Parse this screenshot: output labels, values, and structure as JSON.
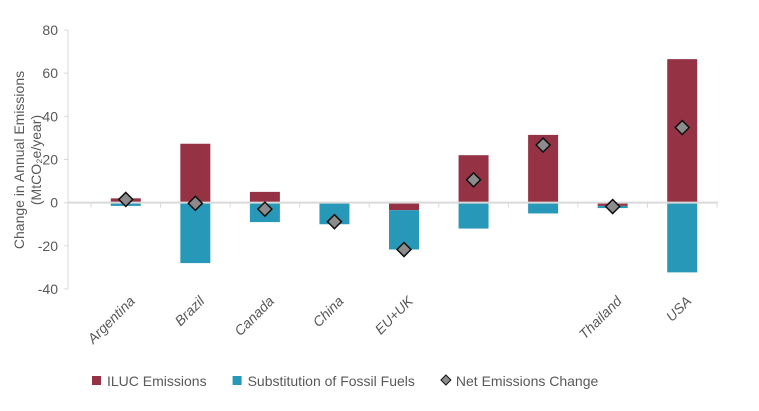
{
  "chart_data": {
    "type": "bar",
    "stacked": true,
    "categories": [
      "Argentina",
      "Brazil",
      "Canada",
      "China",
      "EU+UK",
      "",
      "",
      "Thailand",
      "USA"
    ],
    "series": [
      {
        "name": "ILUC Emissions",
        "kind": "bar",
        "color": "#953345",
        "values": [
          2,
          27.3,
          5,
          0,
          -3.5,
          22,
          31.4,
          -1.5,
          66.5
        ]
      },
      {
        "name": "Substitution of Fossil Fuels",
        "kind": "bar",
        "color": "#2898b9",
        "values": [
          -1.5,
          -28,
          -9,
          -10,
          -18.2,
          -12,
          -5,
          -1,
          -32.3
        ]
      },
      {
        "name": "Net Emissions Change",
        "kind": "marker",
        "color": "#8c8c8c",
        "values": [
          1.5,
          -0.3,
          -3,
          -8.8,
          -21.7,
          10.6,
          26.7,
          -1.8,
          34.8
        ]
      }
    ],
    "ylabel": "Change in Annual Emissions (MtCO2e/year)",
    "ylabel_lines": [
      "Change in Annual Emissions",
      "(MtCO₂e/year)"
    ],
    "ylim": [
      -40,
      80
    ],
    "yticks": [
      -40,
      -20,
      0,
      20,
      40,
      60,
      80
    ],
    "ytick_labels": [
      "-40",
      "-20",
      "0",
      "20",
      "40",
      "60",
      "80"
    ],
    "grid": false,
    "legend": "bottom"
  }
}
